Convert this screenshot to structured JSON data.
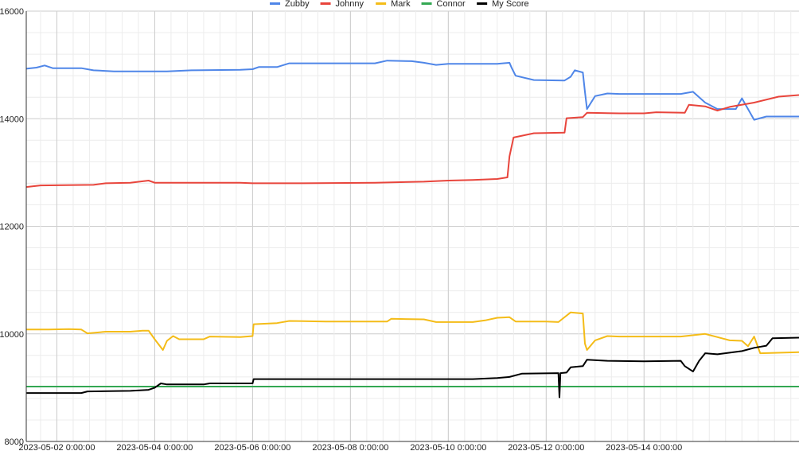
{
  "chart_data": {
    "type": "line",
    "title": "",
    "xlabel": "",
    "ylabel": "",
    "ylim": [
      8000,
      16000
    ],
    "xlim": [
      "2023-05-01 09:00",
      "2023-05-17 04:00"
    ],
    "y_ticks": [
      8000,
      10000,
      12000,
      14000,
      16000
    ],
    "y_tick_labels": [
      "8000",
      "10000",
      "12000",
      "14000",
      "16000"
    ],
    "x_ticks": [
      "2023-05-02 00:00",
      "2023-05-04 00:00",
      "2023-05-06 00:00",
      "2023-05-08 00:00",
      "2023-05-10 00:00",
      "2023-05-12 00:00",
      "2023-05-14 00:00"
    ],
    "x_tick_labels": [
      "2023-05-02 0:00:00",
      "2023-05-04 0:00:00",
      "2023-05-06 0:00:00",
      "2023-05-08 0:00:00",
      "2023-05-10 0:00:00",
      "2023-05-12 0:00:00",
      "2023-05-14 0:00:00"
    ],
    "grid": true,
    "legend_position": "top-center",
    "series": [
      {
        "name": "Zubby",
        "color": "#4f86e8",
        "points": [
          [
            "2023-05-01 09:00",
            14930
          ],
          [
            "2023-05-01 14:00",
            14950
          ],
          [
            "2023-05-01 18:00",
            14990
          ],
          [
            "2023-05-01 22:00",
            14940
          ],
          [
            "2023-05-02 12:00",
            14940
          ],
          [
            "2023-05-02 18:00",
            14900
          ],
          [
            "2023-05-03 04:00",
            14880
          ],
          [
            "2023-05-04 06:00",
            14880
          ],
          [
            "2023-05-04 18:00",
            14900
          ],
          [
            "2023-05-05 18:00",
            14910
          ],
          [
            "2023-05-06 00:00",
            14920
          ],
          [
            "2023-05-06 03:00",
            14960
          ],
          [
            "2023-05-06 12:00",
            14960
          ],
          [
            "2023-05-06 18:00",
            15030
          ],
          [
            "2023-05-07 12:00",
            15030
          ],
          [
            "2023-05-08 12:00",
            15030
          ],
          [
            "2023-05-08 18:00",
            15080
          ],
          [
            "2023-05-09 06:00",
            15070
          ],
          [
            "2023-05-09 12:00",
            15040
          ],
          [
            "2023-05-09 18:00",
            15000
          ],
          [
            "2023-05-10 00:00",
            15020
          ],
          [
            "2023-05-11 00:00",
            15020
          ],
          [
            "2023-05-11 06:00",
            15040
          ],
          [
            "2023-05-11 07:00",
            14950
          ],
          [
            "2023-05-11 09:00",
            14800
          ],
          [
            "2023-05-11 18:00",
            14720
          ],
          [
            "2023-05-12 09:00",
            14710
          ],
          [
            "2023-05-12 12:00",
            14780
          ],
          [
            "2023-05-12 14:00",
            14900
          ],
          [
            "2023-05-12 18:00",
            14860
          ],
          [
            "2023-05-12 19:00",
            14500
          ],
          [
            "2023-05-12 20:00",
            14180
          ],
          [
            "2023-05-13 00:00",
            14420
          ],
          [
            "2023-05-13 06:00",
            14470
          ],
          [
            "2023-05-13 12:00",
            14460
          ],
          [
            "2023-05-14 18:00",
            14460
          ],
          [
            "2023-05-15 00:00",
            14500
          ],
          [
            "2023-05-15 06:00",
            14300
          ],
          [
            "2023-05-15 12:00",
            14180
          ],
          [
            "2023-05-15 21:00",
            14180
          ],
          [
            "2023-05-16 00:00",
            14380
          ],
          [
            "2023-05-16 06:00",
            13980
          ],
          [
            "2023-05-16 12:00",
            14040
          ],
          [
            "2023-05-17 04:00",
            14040
          ]
        ]
      },
      {
        "name": "Johnny",
        "color": "#e8453c",
        "points": [
          [
            "2023-05-01 09:00",
            12730
          ],
          [
            "2023-05-01 16:00",
            12760
          ],
          [
            "2023-05-02 18:00",
            12770
          ],
          [
            "2023-05-03 00:00",
            12800
          ],
          [
            "2023-05-03 12:00",
            12810
          ],
          [
            "2023-05-03 21:00",
            12850
          ],
          [
            "2023-05-04 00:00",
            12810
          ],
          [
            "2023-05-05 18:00",
            12810
          ],
          [
            "2023-05-06 00:00",
            12800
          ],
          [
            "2023-05-07 00:00",
            12800
          ],
          [
            "2023-05-08 12:00",
            12810
          ],
          [
            "2023-05-09 12:00",
            12830
          ],
          [
            "2023-05-10 00:00",
            12850
          ],
          [
            "2023-05-10 12:00",
            12860
          ],
          [
            "2023-05-11 00:00",
            12880
          ],
          [
            "2023-05-11 05:00",
            12910
          ],
          [
            "2023-05-11 06:00",
            13300
          ],
          [
            "2023-05-11 08:00",
            13650
          ],
          [
            "2023-05-11 18:00",
            13730
          ],
          [
            "2023-05-12 09:00",
            13740
          ],
          [
            "2023-05-12 10:00",
            14010
          ],
          [
            "2023-05-12 18:00",
            14030
          ],
          [
            "2023-05-12 20:00",
            14110
          ],
          [
            "2023-05-13 12:00",
            14100
          ],
          [
            "2023-05-14 00:00",
            14100
          ],
          [
            "2023-05-14 06:00",
            14120
          ],
          [
            "2023-05-14 20:00",
            14110
          ],
          [
            "2023-05-14 22:00",
            14260
          ],
          [
            "2023-05-15 06:00",
            14230
          ],
          [
            "2023-05-15 12:00",
            14150
          ],
          [
            "2023-05-15 18:00",
            14220
          ],
          [
            "2023-05-16 06:00",
            14300
          ],
          [
            "2023-05-16 18:00",
            14410
          ],
          [
            "2023-05-17 04:00",
            14440
          ]
        ]
      },
      {
        "name": "Mark",
        "color": "#f4bc18",
        "points": [
          [
            "2023-05-01 09:00",
            10080
          ],
          [
            "2023-05-01 20:00",
            10080
          ],
          [
            "2023-05-02 06:00",
            10090
          ],
          [
            "2023-05-02 12:00",
            10080
          ],
          [
            "2023-05-02 15:00",
            10010
          ],
          [
            "2023-05-03 00:00",
            10040
          ],
          [
            "2023-05-03 12:00",
            10040
          ],
          [
            "2023-05-03 18:00",
            10060
          ],
          [
            "2023-05-03 21:00",
            10060
          ],
          [
            "2023-05-04 00:00",
            9900
          ],
          [
            "2023-05-04 04:00",
            9700
          ],
          [
            "2023-05-04 06:00",
            9870
          ],
          [
            "2023-05-04 09:00",
            9960
          ],
          [
            "2023-05-04 12:00",
            9900
          ],
          [
            "2023-05-05 00:00",
            9900
          ],
          [
            "2023-05-05 03:00",
            9950
          ],
          [
            "2023-05-05 18:00",
            9940
          ],
          [
            "2023-05-06 00:00",
            9960
          ],
          [
            "2023-05-06 00:30",
            10180
          ],
          [
            "2023-05-06 12:00",
            10200
          ],
          [
            "2023-05-06 18:00",
            10240
          ],
          [
            "2023-05-07 12:00",
            10230
          ],
          [
            "2023-05-08 18:00",
            10230
          ],
          [
            "2023-05-08 20:00",
            10280
          ],
          [
            "2023-05-09 12:00",
            10270
          ],
          [
            "2023-05-09 18:00",
            10220
          ],
          [
            "2023-05-10 12:00",
            10220
          ],
          [
            "2023-05-10 18:00",
            10250
          ],
          [
            "2023-05-11 00:00",
            10300
          ],
          [
            "2023-05-11 06:00",
            10310
          ],
          [
            "2023-05-11 09:00",
            10230
          ],
          [
            "2023-05-11 12:00",
            10230
          ],
          [
            "2023-05-12 00:00",
            10230
          ],
          [
            "2023-05-12 06:00",
            10220
          ],
          [
            "2023-05-12 12:00",
            10400
          ],
          [
            "2023-05-12 18:00",
            10380
          ],
          [
            "2023-05-12 19:00",
            9820
          ],
          [
            "2023-05-12 20:00",
            9700
          ],
          [
            "2023-05-13 00:00",
            9880
          ],
          [
            "2023-05-13 06:00",
            9960
          ],
          [
            "2023-05-13 12:00",
            9950
          ],
          [
            "2023-05-14 18:00",
            9950
          ],
          [
            "2023-05-15 06:00",
            10000
          ],
          [
            "2023-05-15 12:00",
            9940
          ],
          [
            "2023-05-15 18:00",
            9880
          ],
          [
            "2023-05-16 00:00",
            9870
          ],
          [
            "2023-05-16 03:00",
            9770
          ],
          [
            "2023-05-16 06:00",
            9950
          ],
          [
            "2023-05-16 09:00",
            9640
          ],
          [
            "2023-05-17 04:00",
            9660
          ]
        ]
      },
      {
        "name": "Connor",
        "color": "#34a853",
        "points": [
          [
            "2023-05-01 09:00",
            9020
          ],
          [
            "2023-05-17 04:00",
            9020
          ]
        ]
      },
      {
        "name": "My Score",
        "color": "#000000",
        "points": [
          [
            "2023-05-01 09:00",
            8900
          ],
          [
            "2023-05-02 12:00",
            8900
          ],
          [
            "2023-05-02 15:00",
            8930
          ],
          [
            "2023-05-03 12:00",
            8940
          ],
          [
            "2023-05-03 21:00",
            8960
          ],
          [
            "2023-05-04 00:00",
            9000
          ],
          [
            "2023-05-04 03:00",
            9080
          ],
          [
            "2023-05-04 06:00",
            9060
          ],
          [
            "2023-05-05 00:00",
            9060
          ],
          [
            "2023-05-05 03:00",
            9080
          ],
          [
            "2023-05-05 18:00",
            9080
          ],
          [
            "2023-05-06 00:00",
            9080
          ],
          [
            "2023-05-06 00:30",
            9160
          ],
          [
            "2023-05-07 00:00",
            9160
          ],
          [
            "2023-05-08 18:00",
            9160
          ],
          [
            "2023-05-09 12:00",
            9160
          ],
          [
            "2023-05-10 12:00",
            9160
          ],
          [
            "2023-05-11 00:00",
            9180
          ],
          [
            "2023-05-11 06:00",
            9200
          ],
          [
            "2023-05-11 12:00",
            9260
          ],
          [
            "2023-05-12 06:00",
            9270
          ],
          [
            "2023-05-12 06:30",
            8820
          ],
          [
            "2023-05-12 07:00",
            9270
          ],
          [
            "2023-05-12 10:00",
            9280
          ],
          [
            "2023-05-12 12:00",
            9380
          ],
          [
            "2023-05-12 18:00",
            9400
          ],
          [
            "2023-05-12 20:00",
            9520
          ],
          [
            "2023-05-13 06:00",
            9500
          ],
          [
            "2023-05-14 00:00",
            9490
          ],
          [
            "2023-05-14 18:00",
            9500
          ],
          [
            "2023-05-14 20:00",
            9400
          ],
          [
            "2023-05-15 00:00",
            9300
          ],
          [
            "2023-05-15 03:00",
            9500
          ],
          [
            "2023-05-15 06:00",
            9640
          ],
          [
            "2023-05-15 12:00",
            9620
          ],
          [
            "2023-05-16 00:00",
            9680
          ],
          [
            "2023-05-16 06:00",
            9740
          ],
          [
            "2023-05-16 12:00",
            9780
          ],
          [
            "2023-05-16 15:00",
            9920
          ],
          [
            "2023-05-17 04:00",
            9930
          ]
        ]
      }
    ]
  }
}
